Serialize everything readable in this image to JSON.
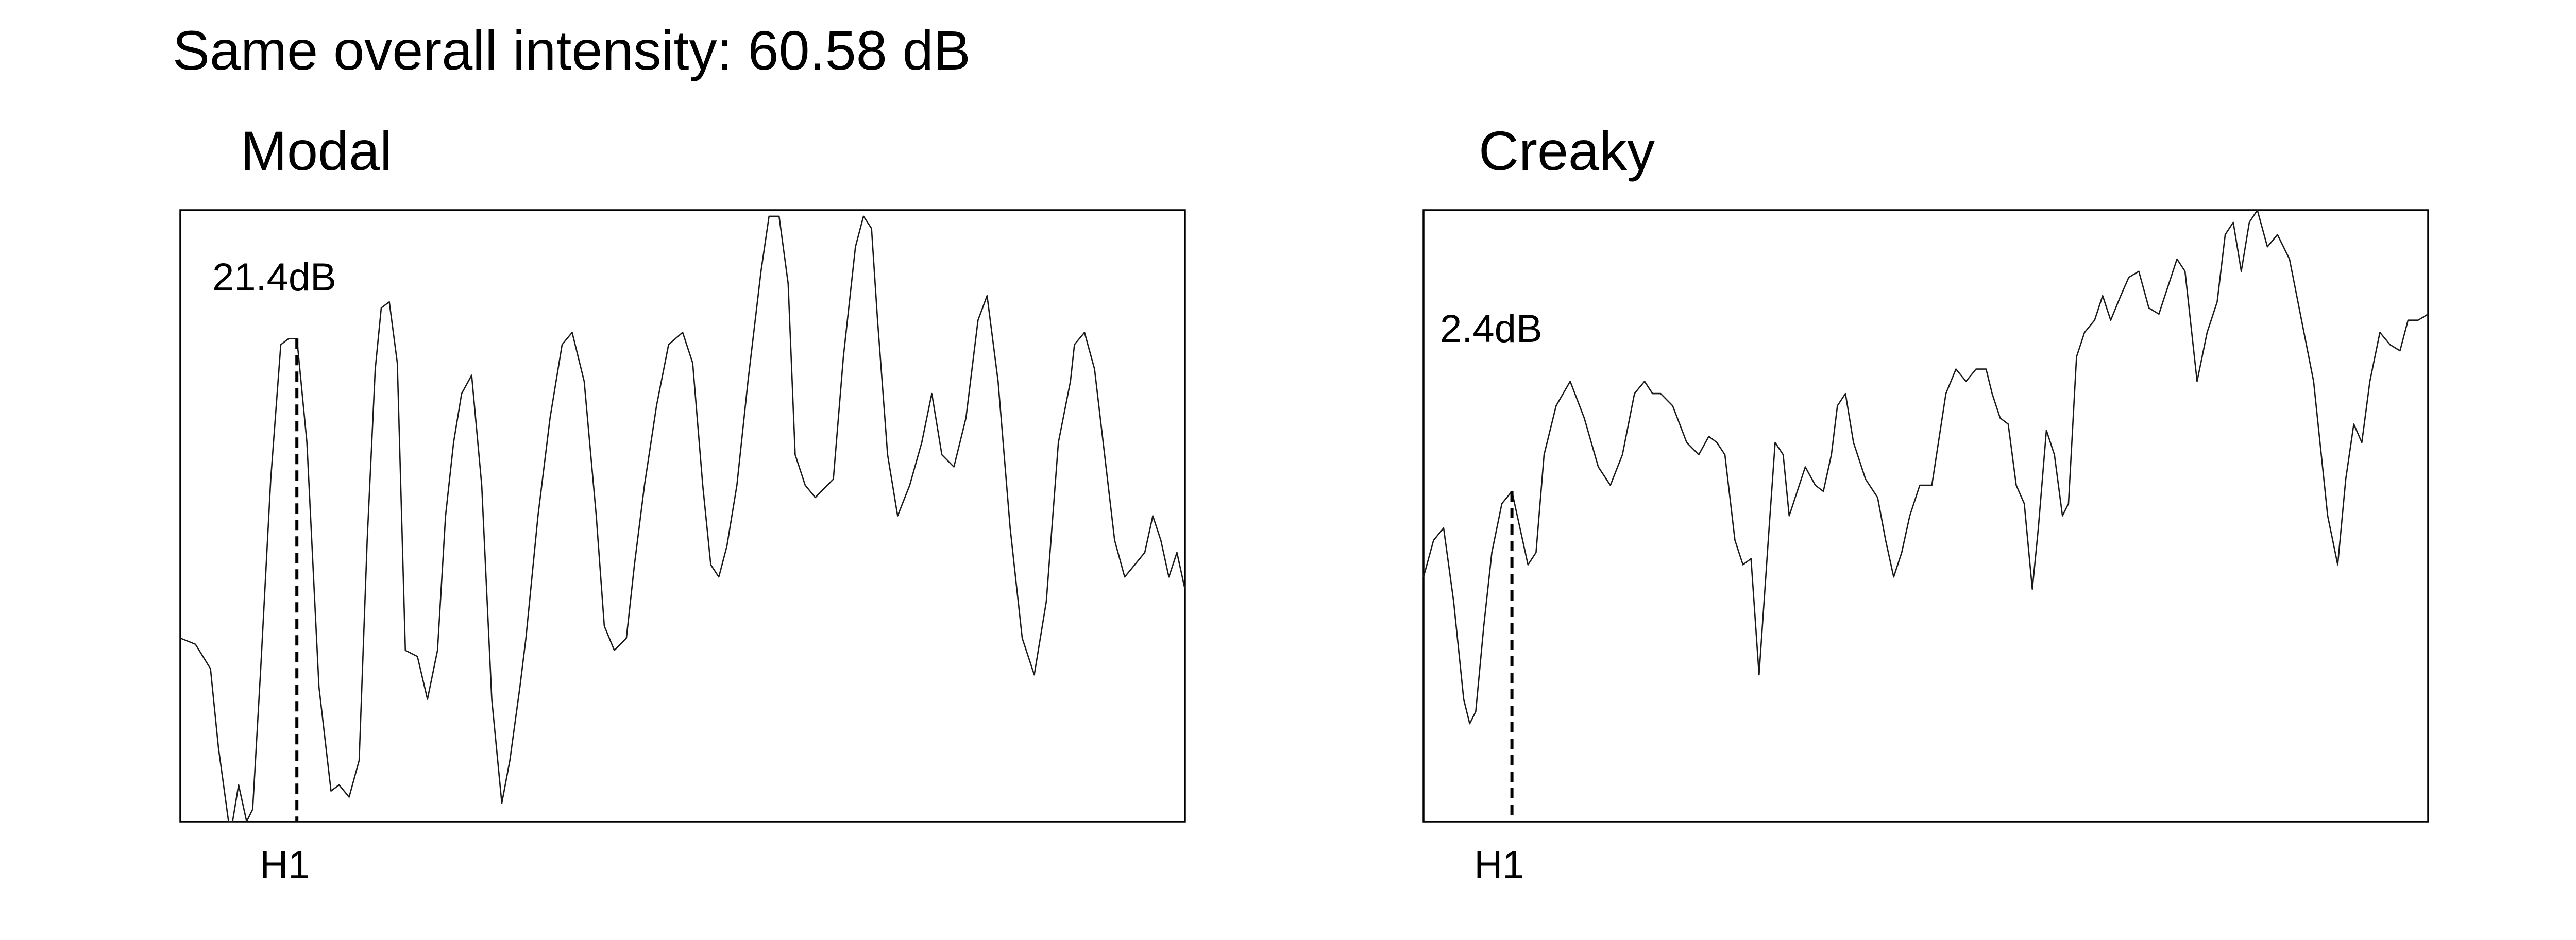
{
  "figure_title": "Same overall intensity: 60.58 dB",
  "chart_data": [
    {
      "type": "line",
      "title": "Modal",
      "annotation": "21.4dB",
      "marker_label": "H1",
      "marker_x": 0.116,
      "xlim": [
        0,
        1
      ],
      "ylim": [
        0,
        1
      ],
      "series": [
        {
          "x": [
            0,
            0.015,
            0.03,
            0.038,
            0.048,
            0.052,
            0.058,
            0.066,
            0.072,
            0.08,
            0.09,
            0.1,
            0.108,
            0.116,
            0.126,
            0.138,
            0.15,
            0.158,
            0.168,
            0.178,
            0.186,
            0.194,
            0.2,
            0.208,
            0.216,
            0.224,
            0.236,
            0.246,
            0.256,
            0.264,
            0.272,
            0.28,
            0.29,
            0.3,
            0.31,
            0.32,
            0.328,
            0.338,
            0.344,
            0.356,
            0.368,
            0.38,
            0.39,
            0.402,
            0.414,
            0.422,
            0.432,
            0.444,
            0.452,
            0.462,
            0.474,
            0.486,
            0.5,
            0.51,
            0.52,
            0.528,
            0.536,
            0.544,
            0.554,
            0.565,
            0.578,
            0.586,
            0.596,
            0.605,
            0.612,
            0.622,
            0.632,
            0.65,
            0.66,
            0.672,
            0.68,
            0.688,
            0.694,
            0.704,
            0.714,
            0.726,
            0.738,
            0.748,
            0.758,
            0.77,
            0.782,
            0.794,
            0.803,
            0.814,
            0.826,
            0.838,
            0.85,
            0.862,
            0.874,
            0.886,
            0.89,
            0.9,
            0.91,
            0.92,
            0.93,
            0.94,
            0.95,
            0.96,
            0.968,
            0.976,
            0.984,
            0.992,
            1.0
          ],
          "y": [
            0.3,
            0.29,
            0.25,
            0.12,
            0.0,
            0.0,
            0.06,
            0.0,
            0.02,
            0.25,
            0.56,
            0.78,
            0.79,
            0.79,
            0.62,
            0.22,
            0.05,
            0.06,
            0.04,
            0.1,
            0.46,
            0.74,
            0.84,
            0.85,
            0.75,
            0.28,
            0.27,
            0.2,
            0.28,
            0.5,
            0.62,
            0.7,
            0.73,
            0.55,
            0.2,
            0.03,
            0.1,
            0.22,
            0.3,
            0.5,
            0.66,
            0.78,
            0.8,
            0.72,
            0.5,
            0.32,
            0.28,
            0.3,
            0.42,
            0.55,
            0.68,
            0.78,
            0.8,
            0.75,
            0.55,
            0.42,
            0.4,
            0.45,
            0.55,
            0.72,
            0.9,
            0.99,
            0.99,
            0.88,
            0.6,
            0.55,
            0.53,
            0.56,
            0.76,
            0.94,
            0.99,
            0.97,
            0.82,
            0.6,
            0.5,
            0.55,
            0.62,
            0.7,
            0.6,
            0.58,
            0.66,
            0.82,
            0.86,
            0.72,
            0.48,
            0.3,
            0.24,
            0.36,
            0.62,
            0.72,
            0.78,
            0.8,
            0.74,
            0.6,
            0.46,
            0.4,
            0.42,
            0.44,
            0.5,
            0.46,
            0.4,
            0.44,
            0.38
          ]
        }
      ]
    },
    {
      "type": "line",
      "title": "Creaky",
      "annotation": "2.4dB",
      "marker_label": "H1",
      "marker_x": 0.088,
      "xlim": [
        0,
        1
      ],
      "ylim": [
        0,
        1
      ],
      "series": [
        {
          "x": [
            0,
            0.01,
            0.02,
            0.03,
            0.04,
            0.046,
            0.052,
            0.06,
            0.068,
            0.078,
            0.088,
            0.096,
            0.104,
            0.112,
            0.12,
            0.132,
            0.146,
            0.16,
            0.174,
            0.186,
            0.198,
            0.21,
            0.22,
            0.228,
            0.236,
            0.248,
            0.262,
            0.274,
            0.284,
            0.292,
            0.3,
            0.31,
            0.318,
            0.326,
            0.334,
            0.344,
            0.35,
            0.358,
            0.364,
            0.372,
            0.38,
            0.39,
            0.398,
            0.406,
            0.412,
            0.42,
            0.428,
            0.44,
            0.452,
            0.46,
            0.468,
            0.476,
            0.484,
            0.494,
            0.506,
            0.52,
            0.53,
            0.54,
            0.55,
            0.56,
            0.566,
            0.574,
            0.582,
            0.59,
            0.598,
            0.606,
            0.612,
            0.62,
            0.628,
            0.636,
            0.642,
            0.65,
            0.658,
            0.668,
            0.676,
            0.684,
            0.694,
            0.702,
            0.712,
            0.722,
            0.732,
            0.742,
            0.75,
            0.758,
            0.77,
            0.78,
            0.79,
            0.798,
            0.806,
            0.814,
            0.822,
            0.83,
            0.84,
            0.85,
            0.862,
            0.874,
            0.886,
            0.9,
            0.91,
            0.918,
            0.926,
            0.934,
            0.942,
            0.952,
            0.962,
            0.972,
            0.98,
            0.99,
            1.0
          ],
          "y": [
            0.4,
            0.46,
            0.48,
            0.36,
            0.2,
            0.16,
            0.18,
            0.32,
            0.44,
            0.52,
            0.54,
            0.48,
            0.42,
            0.44,
            0.6,
            0.68,
            0.72,
            0.66,
            0.58,
            0.55,
            0.6,
            0.7,
            0.72,
            0.7,
            0.7,
            0.68,
            0.62,
            0.6,
            0.63,
            0.62,
            0.6,
            0.46,
            0.42,
            0.43,
            0.24,
            0.48,
            0.62,
            0.6,
            0.5,
            0.54,
            0.58,
            0.55,
            0.54,
            0.6,
            0.68,
            0.7,
            0.62,
            0.56,
            0.53,
            0.46,
            0.4,
            0.44,
            0.5,
            0.55,
            0.55,
            0.7,
            0.74,
            0.72,
            0.74,
            0.74,
            0.7,
            0.66,
            0.65,
            0.55,
            0.52,
            0.38,
            0.48,
            0.64,
            0.6,
            0.5,
            0.52,
            0.76,
            0.8,
            0.82,
            0.86,
            0.82,
            0.86,
            0.89,
            0.9,
            0.84,
            0.83,
            0.88,
            0.92,
            0.9,
            0.72,
            0.8,
            0.85,
            0.96,
            0.98,
            0.9,
            0.98,
            1.0,
            0.94,
            0.96,
            0.92,
            0.82,
            0.72,
            0.5,
            0.42,
            0.56,
            0.65,
            0.62,
            0.72,
            0.8,
            0.78,
            0.77,
            0.82,
            0.82,
            0.83
          ]
        }
      ]
    }
  ]
}
